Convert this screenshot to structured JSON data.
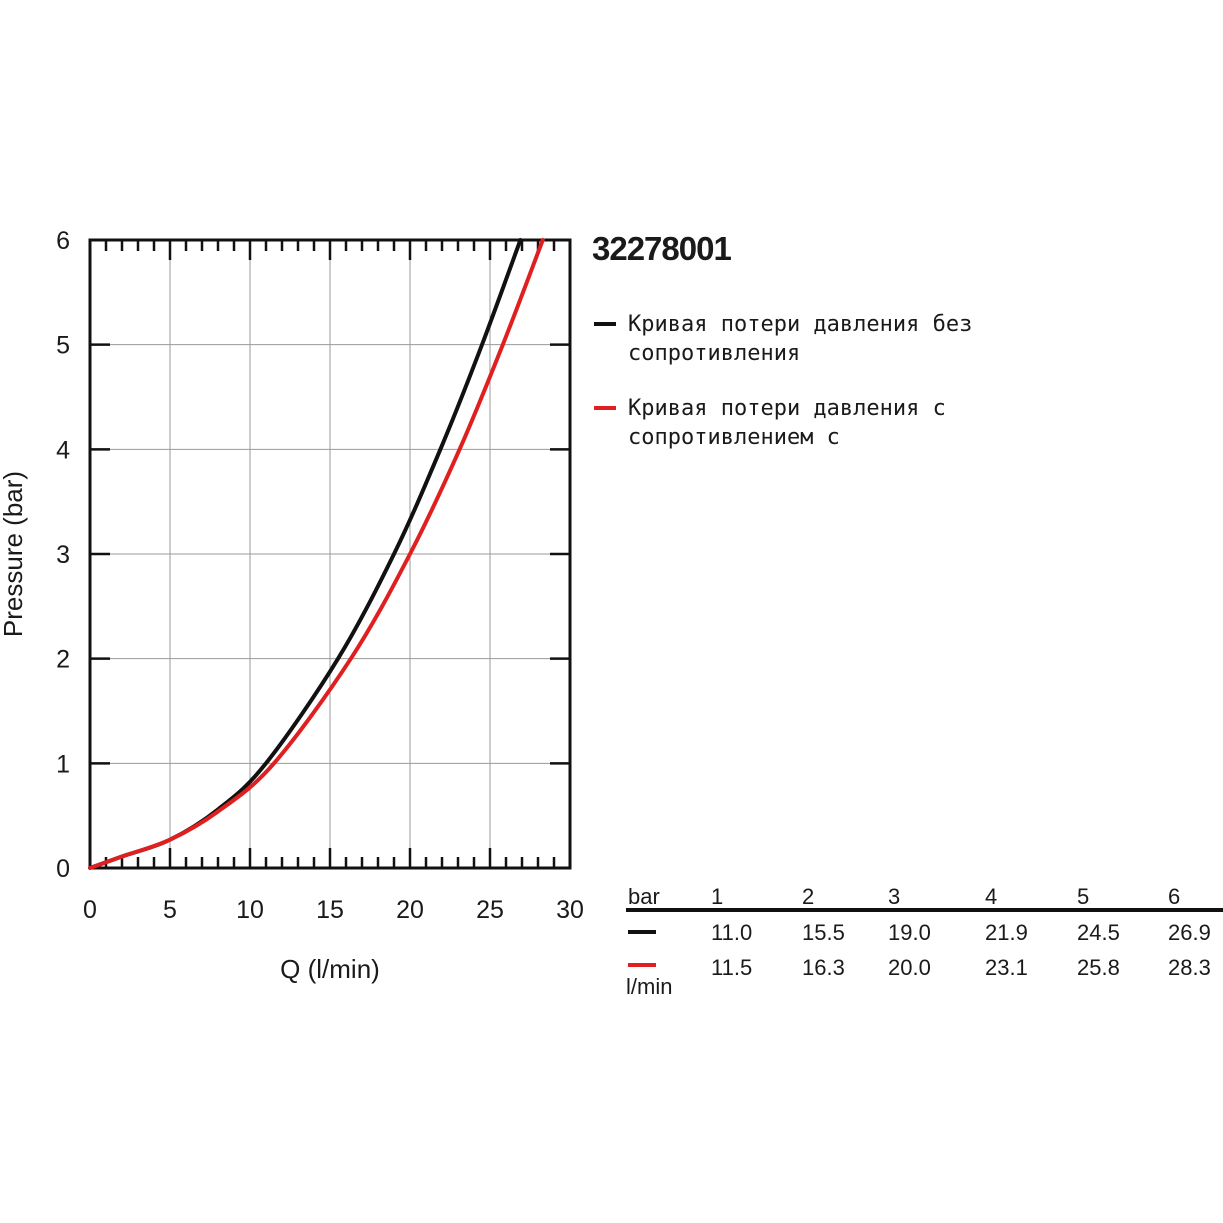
{
  "product_code": "32278001",
  "legend": [
    {
      "text": "Кривая потери давления без сопротивления",
      "color": "#111111"
    },
    {
      "text": "Кривая потери давления с сопротивлением с",
      "color": "#e02020"
    }
  ],
  "chart_data": {
    "type": "line",
    "xlabel": "Q (l/min)",
    "ylabel": "Pressure (bar)",
    "xlim": [
      0,
      30
    ],
    "ylim": [
      0,
      6
    ],
    "x_ticks": [
      "0",
      "5",
      "10",
      "15",
      "20",
      "25",
      "30"
    ],
    "y_ticks": [
      "0",
      "1",
      "2",
      "3",
      "4",
      "5",
      "6"
    ],
    "grid": true,
    "series": [
      {
        "color": "#111111",
        "points": [
          [
            0,
            0
          ],
          [
            2,
            0.11
          ],
          [
            5,
            0.27
          ],
          [
            8,
            0.56
          ],
          [
            11.0,
            1.0
          ],
          [
            15.5,
            2.0
          ],
          [
            19.0,
            3.0
          ],
          [
            21.9,
            4.0
          ],
          [
            24.5,
            5.0
          ],
          [
            26.9,
            6.0
          ]
        ]
      },
      {
        "color": "#e02020",
        "points": [
          [
            0,
            0
          ],
          [
            2,
            0.11
          ],
          [
            5,
            0.27
          ],
          [
            8,
            0.54
          ],
          [
            11.5,
            1.0
          ],
          [
            16.3,
            2.0
          ],
          [
            20.0,
            3.0
          ],
          [
            23.1,
            4.0
          ],
          [
            25.8,
            5.0
          ],
          [
            28.3,
            6.0
          ]
        ]
      }
    ]
  },
  "table": {
    "header_label": "bar",
    "unit_label": "l/min",
    "columns": [
      "1",
      "2",
      "3",
      "4",
      "5",
      "6"
    ],
    "rows": [
      {
        "color": "#111111",
        "values": [
          "11.0",
          "15.5",
          "19.0",
          "21.9",
          "24.5",
          "26.9"
        ]
      },
      {
        "color": "#e02020",
        "values": [
          "11.5",
          "16.3",
          "20.0",
          "23.1",
          "25.8",
          "28.3"
        ]
      }
    ]
  }
}
